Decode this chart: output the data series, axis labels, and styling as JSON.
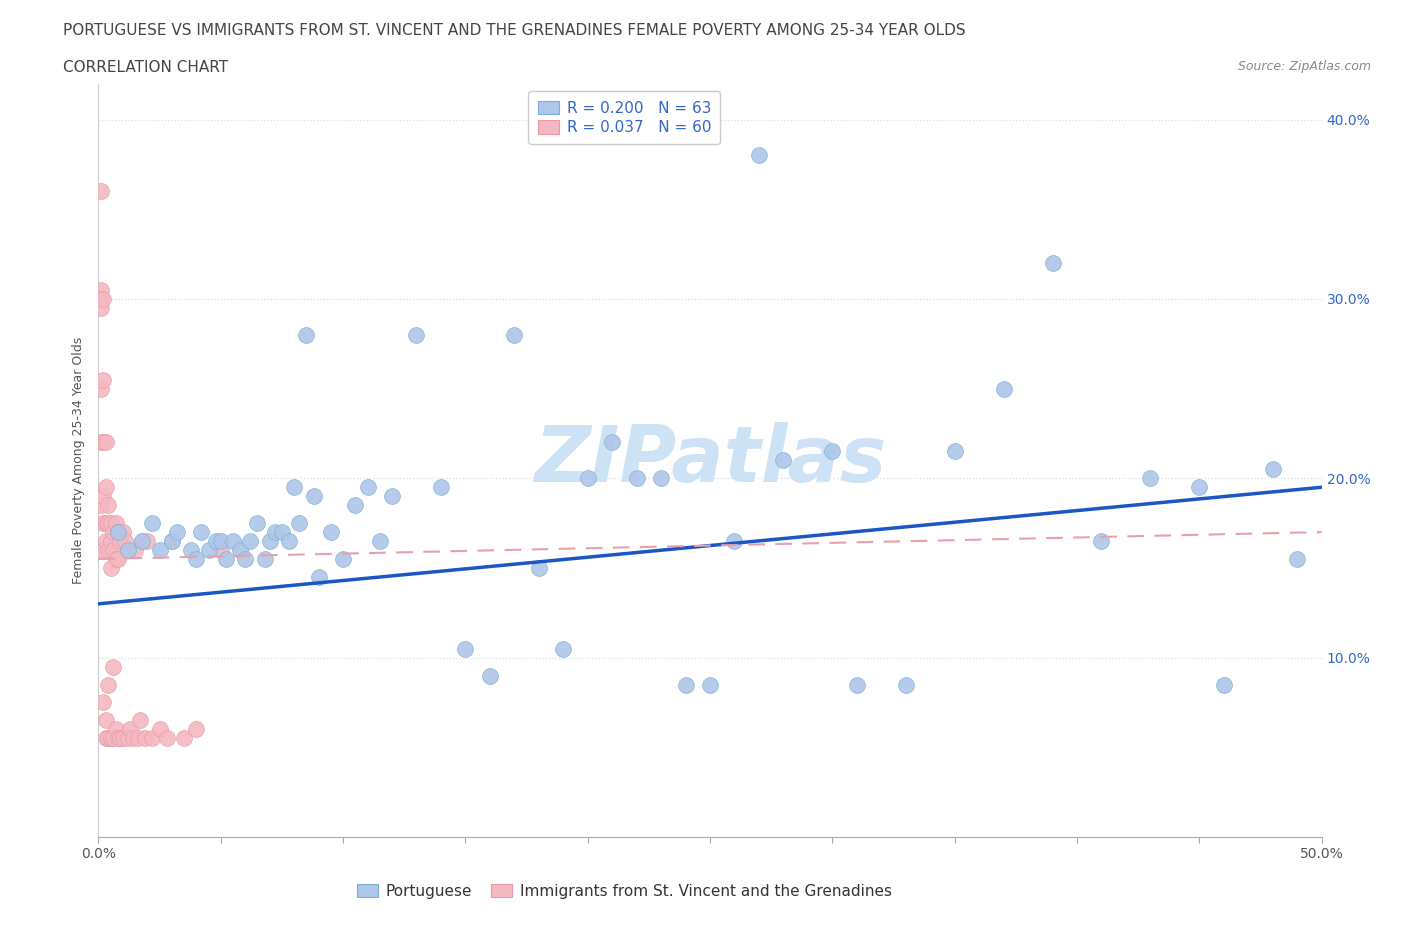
{
  "title_line1": "PORTUGUESE VS IMMIGRANTS FROM ST. VINCENT AND THE GRENADINES FEMALE POVERTY AMONG 25-34 YEAR OLDS",
  "title_line2": "CORRELATION CHART",
  "source_text": "Source: ZipAtlas.com",
  "watermark": "ZIPatlas",
  "ylabel": "Female Poverty Among 25-34 Year Olds",
  "xlim": [
    0.0,
    0.5
  ],
  "ylim": [
    0.0,
    0.42
  ],
  "xticks_minor": [
    0.0,
    0.05,
    0.1,
    0.15,
    0.2,
    0.25,
    0.3,
    0.35,
    0.4,
    0.45,
    0.5
  ],
  "yticks": [
    0.0,
    0.1,
    0.2,
    0.3,
    0.4
  ],
  "legend_entries": [
    {
      "label": "R = 0.200   N = 63",
      "color": "#aec6e8"
    },
    {
      "label": "R = 0.037   N = 60",
      "color": "#f4b8c1"
    }
  ],
  "blue_scatter_x": [
    0.008,
    0.012,
    0.018,
    0.022,
    0.025,
    0.03,
    0.032,
    0.038,
    0.04,
    0.042,
    0.045,
    0.048,
    0.05,
    0.052,
    0.055,
    0.058,
    0.06,
    0.062,
    0.065,
    0.068,
    0.07,
    0.072,
    0.075,
    0.078,
    0.08,
    0.082,
    0.085,
    0.088,
    0.09,
    0.095,
    0.1,
    0.105,
    0.11,
    0.115,
    0.12,
    0.13,
    0.14,
    0.15,
    0.16,
    0.17,
    0.18,
    0.19,
    0.2,
    0.21,
    0.22,
    0.23,
    0.24,
    0.25,
    0.26,
    0.27,
    0.28,
    0.3,
    0.31,
    0.33,
    0.35,
    0.37,
    0.39,
    0.41,
    0.43,
    0.45,
    0.46,
    0.48,
    0.49
  ],
  "blue_scatter_y": [
    0.17,
    0.16,
    0.165,
    0.175,
    0.16,
    0.165,
    0.17,
    0.16,
    0.155,
    0.17,
    0.16,
    0.165,
    0.165,
    0.155,
    0.165,
    0.16,
    0.155,
    0.165,
    0.175,
    0.155,
    0.165,
    0.17,
    0.17,
    0.165,
    0.195,
    0.175,
    0.28,
    0.19,
    0.145,
    0.17,
    0.155,
    0.185,
    0.195,
    0.165,
    0.19,
    0.28,
    0.195,
    0.105,
    0.09,
    0.28,
    0.15,
    0.105,
    0.2,
    0.22,
    0.2,
    0.2,
    0.085,
    0.085,
    0.165,
    0.38,
    0.21,
    0.215,
    0.085,
    0.085,
    0.215,
    0.25,
    0.32,
    0.165,
    0.2,
    0.195,
    0.085,
    0.205,
    0.155
  ],
  "pink_scatter_x": [
    0.001,
    0.001,
    0.001,
    0.001,
    0.001,
    0.001,
    0.001,
    0.002,
    0.002,
    0.002,
    0.002,
    0.002,
    0.002,
    0.002,
    0.003,
    0.003,
    0.003,
    0.003,
    0.003,
    0.003,
    0.004,
    0.004,
    0.004,
    0.004,
    0.004,
    0.005,
    0.005,
    0.005,
    0.005,
    0.006,
    0.006,
    0.006,
    0.006,
    0.007,
    0.007,
    0.007,
    0.008,
    0.008,
    0.008,
    0.009,
    0.009,
    0.01,
    0.01,
    0.011,
    0.012,
    0.013,
    0.014,
    0.015,
    0.016,
    0.017,
    0.018,
    0.019,
    0.02,
    0.022,
    0.025,
    0.028,
    0.03,
    0.035,
    0.04,
    0.05
  ],
  "pink_scatter_y": [
    0.36,
    0.305,
    0.3,
    0.295,
    0.25,
    0.22,
    0.185,
    0.3,
    0.255,
    0.22,
    0.19,
    0.175,
    0.16,
    0.075,
    0.22,
    0.195,
    0.175,
    0.165,
    0.065,
    0.055,
    0.185,
    0.175,
    0.16,
    0.085,
    0.055,
    0.175,
    0.165,
    0.15,
    0.055,
    0.17,
    0.16,
    0.095,
    0.055,
    0.175,
    0.155,
    0.06,
    0.17,
    0.155,
    0.055,
    0.165,
    0.055,
    0.17,
    0.055,
    0.165,
    0.055,
    0.06,
    0.055,
    0.16,
    0.055,
    0.065,
    0.165,
    0.055,
    0.165,
    0.055,
    0.06,
    0.055,
    0.165,
    0.055,
    0.06,
    0.16
  ],
  "blue_line_x": [
    0.0,
    0.5
  ],
  "blue_line_y": [
    0.13,
    0.195
  ],
  "pink_dashed_line_x": [
    0.0,
    0.5
  ],
  "pink_dashed_line_y": [
    0.155,
    0.17
  ],
  "blue_line_color": "#1a56c4",
  "pink_dashed_line_color": "#e8a0a8",
  "scatter_blue_color": "#aec6e8",
  "scatter_pink_color": "#f4b8c1",
  "scatter_blue_edge": "#7ab0d8",
  "scatter_pink_edge": "#e89aaa",
  "grid_color": "#dddddd",
  "background_color": "#ffffff",
  "title_fontsize": 11,
  "subtitle_fontsize": 11,
  "axis_label_fontsize": 9,
  "tick_fontsize": 10,
  "legend_fontsize": 11,
  "watermark_fontsize": 56,
  "watermark_color": "#cde3f5",
  "source_fontsize": 9,
  "right_tick_color": "#3366cc"
}
